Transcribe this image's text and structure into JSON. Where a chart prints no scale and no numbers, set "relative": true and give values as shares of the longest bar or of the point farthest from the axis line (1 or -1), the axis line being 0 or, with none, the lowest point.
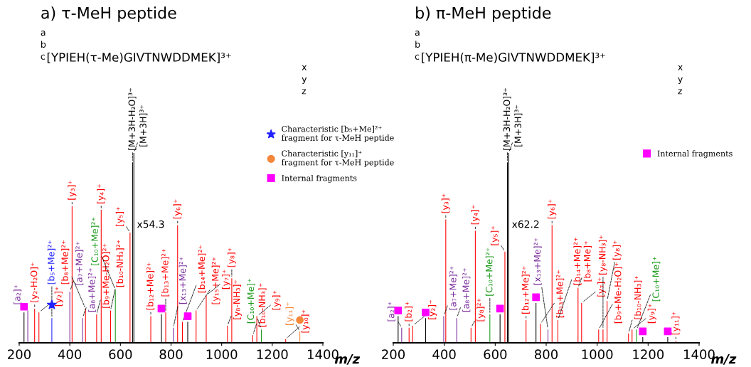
{
  "chart_data": [
    {
      "type": "bar",
      "title": "a) τ-MeH peptide",
      "xlabel": "m/z",
      "relative": true,
      "xlim": [
        200,
        1400
      ],
      "xticks": [
        200,
        400,
        600,
        800,
        1000,
        1200,
        1400
      ],
      "tick_labels": "x",
      "legend": "right",
      "annotations": [
        "a",
        "b",
        "c",
        "[YPIEH(τ-Me)GIVTNWDDMEK]³⁺",
        "x",
        "y",
        "z",
        {
          "text": "x54.3",
          "x": 665,
          "y": 0.62
        },
        {
          "text": "[a₂]⁺",
          "x": 234,
          "y": 0.17
        },
        {
          "text": "[a₇+Me]²⁺",
          "x": 400,
          "y": 0.27
        },
        {
          "text": "[a₈+Me]²⁺",
          "x": 450,
          "y": 0.13
        },
        {
          "text": "[x₁₃+Me]²⁺",
          "x": 809,
          "y": 0.08
        },
        {
          "text": "[y₂-H₂O]⁺",
          "x": 261,
          "y": 0.18
        },
        {
          "text": "[y₂]⁺",
          "x": 278,
          "y": 0.16
        },
        {
          "text": "[y₃]⁺",
          "x": 409,
          "y": 0.72
        },
        {
          "text": "[b₈+Me]²⁺",
          "x": 462,
          "y": 0.18
        },
        {
          "text": "[b₉+Me-H₂O]²⁺",
          "x": 506,
          "y": 0.15
        },
        {
          "text": "[y₄]⁺",
          "x": 524,
          "y": 0.7
        },
        {
          "text": "[b₁₀-NH₃]²⁺",
          "x": 561,
          "y": 0.17
        },
        {
          "text": "[y₅]⁺",
          "x": 638,
          "y": 0.58
        },
        {
          "text": "[b₁₂+Me]²⁺",
          "x": 720,
          "y": 0.14
        },
        {
          "text": "[b₁₃+Me]²⁺",
          "x": 779,
          "y": 0.16
        },
        {
          "text": "[y₆]⁺",
          "x": 826,
          "y": 0.62
        },
        {
          "text": "[b₁₄+Me]²⁺",
          "x": 845,
          "y": 0.11
        },
        {
          "text": "[y₁₅+Me]²⁺",
          "x": 899,
          "y": 0.17
        },
        {
          "text": "[y₇]⁺",
          "x": 939,
          "y": 0.25
        },
        {
          "text": "[y₈-NH₃]⁺",
          "x": 1023,
          "y": 0.09
        },
        {
          "text": "[y₈]⁺",
          "x": 1040,
          "y": 0.34
        },
        {
          "text": "[b₁₀-NH₃]⁺",
          "x": 1123,
          "y": 0.04
        },
        {
          "text": "[y₉]⁺",
          "x": 1139,
          "y": 0.14
        },
        {
          "text": "[y₁₀]⁺",
          "x": 1253,
          "y": 0.02
        },
        {
          "text": "[C₁₀+Me]²⁺",
          "x": 580,
          "y": 0.28
        },
        {
          "text": "[C₁₀+Me]⁺",
          "x": 1157,
          "y": 0.07
        },
        {
          "text": "[b₅+Me]²⁺",
          "x": 329,
          "y": 0.13
        },
        {
          "text": "[y₁₁]⁺",
          "x": 1309,
          "y": 0.06
        },
        {
          "text": "[M+3H-H₂O]³⁺",
          "x": 648,
          "y": 0.95
        },
        {
          "text": "[M+3H]³⁺",
          "x": 653,
          "y": 1.0
        }
      ],
      "series": [
        {
          "color": "#7b2d9c",
          "x": [
            234,
            400,
            450,
            809
          ],
          "values": [
            0.17,
            0.27,
            0.13,
            0.08
          ]
        },
        {
          "color": "#ff0000",
          "x": [
            261,
            278,
            409,
            462,
            506,
            524,
            561,
            638,
            720,
            779,
            826,
            845,
            899,
            939,
            1023,
            1040,
            1123,
            1139,
            1253
          ],
          "values": [
            0.18,
            0.16,
            0.72,
            0.18,
            0.15,
            0.7,
            0.17,
            0.58,
            0.14,
            0.16,
            0.62,
            0.11,
            0.17,
            0.25,
            0.09,
            0.34,
            0.04,
            0.14,
            0.02
          ]
        },
        {
          "color": "#1a9a1a",
          "x": [
            580,
            1157
          ],
          "values": [
            0.28,
            0.07
          ]
        },
        {
          "color": "#2222ff",
          "x": [
            329
          ],
          "values": [
            0.13
          ]
        },
        {
          "color": "#f5873a",
          "x": [
            1309
          ],
          "values": [
            0.06
          ]
        },
        {
          "color": "#000000",
          "x": [
            219,
            648,
            653,
            762,
            866
          ],
          "values": [
            0.16,
            0.95,
            1.0,
            0.15,
            0.11
          ]
        },
        {
          "type": "scatter",
          "marker": "star",
          "name": "Characteristic [b₅+Me]²⁺\nfragment for τ-MeH peptide",
          "color": "#2222ff",
          "x": [
            329
          ],
          "values": [
            0.2
          ]
        },
        {
          "type": "scatter",
          "marker": "circle",
          "name": "Characteristic [y₁₁]⁺\nfragment for τ-MeH peptide",
          "color": "#f5873a",
          "x": [
            1309
          ],
          "values": [
            0.12
          ]
        },
        {
          "type": "scatter",
          "marker": "square",
          "name": "Internal fragments",
          "color": "#ff00ff",
          "x": [
            219,
            762,
            866
          ],
          "values": [
            0.19,
            0.18,
            0.14
          ]
        }
      ]
    },
    {
      "type": "bar",
      "title": "b) π-MeH peptide",
      "xlabel": "m/z",
      "relative": true,
      "xlim": [
        200,
        1400
      ],
      "xticks": [
        200,
        400,
        600,
        800,
        1000,
        1200,
        1400
      ],
      "tick_labels": "x",
      "legend": "right",
      "annotations": [
        "a",
        "b",
        "c",
        "[YPIEH(π-Me)GIVTNWDDMEK]³⁺",
        "x",
        "y",
        "z",
        {
          "text": "x62.2",
          "x": 665,
          "y": 0.62
        },
        {
          "text": "[a₂]⁺",
          "x": 233,
          "y": 0.08
        },
        {
          "text": "[a₇+Me]²⁺",
          "x": 398,
          "y": 0.14
        },
        {
          "text": "[a₈+Me]²⁺",
          "x": 449,
          "y": 0.13
        },
        {
          "text": "[x₁₃+Me]²⁺",
          "x": 807,
          "y": 0.07
        },
        {
          "text": "[b₂]⁺",
          "x": 262,
          "y": 0.08
        },
        {
          "text": "[y₂]⁺",
          "x": 276,
          "y": 0.09
        },
        {
          "text": "[y₃]⁺",
          "x": 406,
          "y": 0.65
        },
        {
          "text": "[y₈]²⁺",
          "x": 505,
          "y": 0.08
        },
        {
          "text": "[y₄]⁺",
          "x": 522,
          "y": 0.59
        },
        {
          "text": "[y₅]⁺",
          "x": 638,
          "y": 0.48
        },
        {
          "text": "[b₁₂+Me]²⁺",
          "x": 721,
          "y": 0.12
        },
        {
          "text": "[b₁₃+Me]²⁺",
          "x": 778,
          "y": 0.1
        },
        {
          "text": "[y₆]⁺",
          "x": 823,
          "y": 0.62
        },
        {
          "text": "[b₁₄+Me]²⁺",
          "x": 846,
          "y": 0.12
        },
        {
          "text": "[b₈+Me]⁺",
          "x": 925,
          "y": 0.29
        },
        {
          "text": "[y₇]⁺",
          "x": 939,
          "y": 0.21
        },
        {
          "text": "[b₉+Me-H₂O]⁺",
          "x": 1006,
          "y": 0.07
        },
        {
          "text": "[y₈-NH₃]⁺",
          "x": 1023,
          "y": 0.07
        },
        {
          "text": "[y₈]⁺",
          "x": 1039,
          "y": 0.22
        },
        {
          "text": "[b₁₀-NH₃]⁺",
          "x": 1123,
          "y": 0.05
        },
        {
          "text": "[y₉]⁺",
          "x": 1137,
          "y": 0.07
        },
        {
          "text": "[y₁₁]⁺",
          "x": 1309,
          "y": 0.01
        },
        {
          "text": "[C₁₀+Me]²⁺",
          "x": 579,
          "y": 0.15
        },
        {
          "text": "[C₁₀+Me]⁺",
          "x": 1155,
          "y": 0.07
        },
        {
          "text": "[M+3H-H₂O]³⁺",
          "x": 648,
          "y": 0.95
        },
        {
          "text": "[M+3H]³⁺",
          "x": 653,
          "y": 1.0
        }
      ],
      "series": [
        {
          "color": "#7b2d9c",
          "x": [
            233,
            398,
            449,
            807
          ],
          "values": [
            0.08,
            0.14,
            0.13,
            0.07
          ]
        },
        {
          "color": "#ff0000",
          "x": [
            262,
            276,
            406,
            505,
            522,
            638,
            721,
            778,
            823,
            846,
            925,
            939,
            1006,
            1023,
            1039,
            1123,
            1137,
            1309
          ],
          "values": [
            0.08,
            0.09,
            0.65,
            0.08,
            0.59,
            0.48,
            0.12,
            0.1,
            0.62,
            0.12,
            0.29,
            0.21,
            0.07,
            0.07,
            0.22,
            0.05,
            0.07,
            0.01
          ]
        },
        {
          "color": "#1a9a1a",
          "x": [
            579,
            1155
          ],
          "values": [
            0.15,
            0.07
          ]
        },
        {
          "color": "#000000",
          "x": [
            219,
            327,
            619,
            648,
            653,
            760,
            1179,
            1277
          ],
          "values": [
            0.14,
            0.13,
            0.15,
            0.95,
            1.0,
            0.21,
            0.03,
            0.03
          ]
        },
        {
          "type": "scatter",
          "marker": "square",
          "name": "Internal fragments",
          "color": "#ff00ff",
          "x": [
            219,
            327,
            619,
            760,
            1179,
            1277
          ],
          "values": [
            0.17,
            0.16,
            0.18,
            0.24,
            0.06,
            0.06
          ]
        }
      ]
    }
  ]
}
